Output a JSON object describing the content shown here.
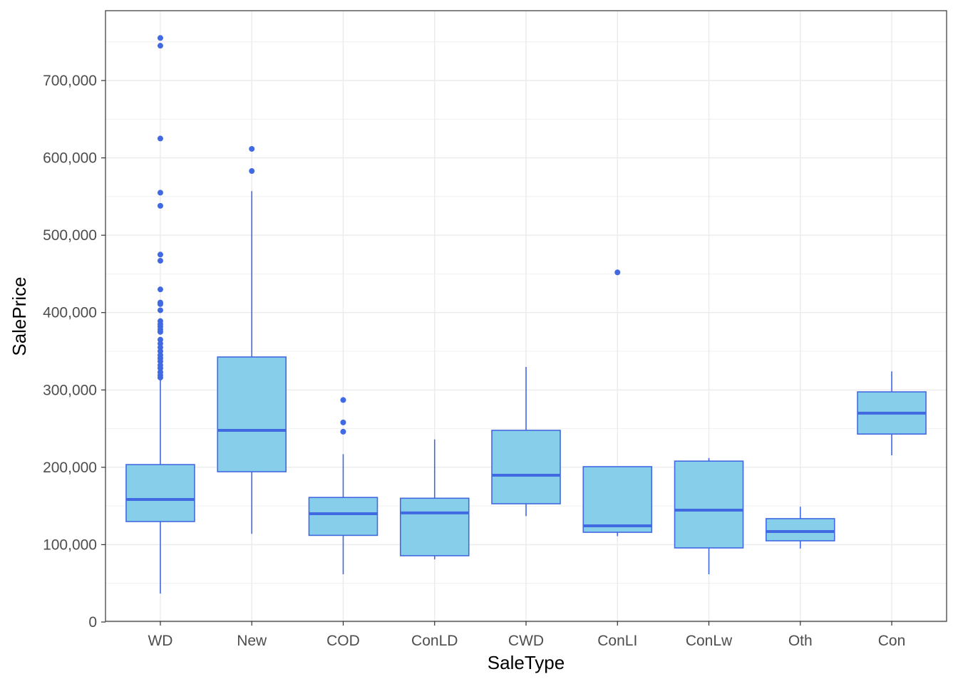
{
  "chart_data": {
    "type": "boxplot",
    "xlabel": "SaleType",
    "ylabel": "SalePrice",
    "ylim": [
      0,
      790000
    ],
    "yticks": [
      0,
      100000,
      200000,
      300000,
      400000,
      500000,
      600000,
      700000
    ],
    "ytick_labels": [
      "0",
      "100,000",
      "200,000",
      "300,000",
      "400,000",
      "500,000",
      "600,000",
      "700,000"
    ],
    "colors": {
      "fill": "#87CEEB",
      "stroke": "#4169E1",
      "grid": "#EBEBEB"
    },
    "categories": [
      "WD",
      "New",
      "COD",
      "ConLD",
      "CWD",
      "ConLI",
      "ConLw",
      "Oth",
      "Con"
    ],
    "boxes": [
      {
        "low": 36800,
        "q1": 129900,
        "median": 158400,
        "q3": 203500,
        "high": 314000,
        "outliers": [
          755000,
          745000,
          625000,
          555000,
          538000,
          475000,
          467000,
          430000,
          413000,
          411000,
          403000,
          389000,
          385000,
          382000,
          378000,
          375000,
          365000,
          360000,
          355000,
          350000,
          345000,
          341000,
          337000,
          332000,
          328000,
          323000,
          319000,
          316000
        ]
      },
      {
        "low": 114000,
        "q1": 194300,
        "median": 247800,
        "q3": 342600,
        "high": 557000,
        "outliers": [
          611600,
          583000
        ]
      },
      {
        "low": 61700,
        "q1": 112000,
        "median": 140000,
        "q3": 161000,
        "high": 217000,
        "outliers": [
          287000,
          258000,
          246000
        ]
      },
      {
        "low": 81000,
        "q1": 85700,
        "median": 141000,
        "q3": 160000,
        "high": 236000,
        "outliers": []
      },
      {
        "low": 137000,
        "q1": 152900,
        "median": 189700,
        "q3": 247800,
        "high": 329700,
        "outliers": []
      },
      {
        "low": 111000,
        "q1": 116000,
        "median": 124300,
        "q3": 200800,
        "high": 200800,
        "outliers": [
          452000
        ]
      },
      {
        "low": 61700,
        "q1": 95800,
        "median": 144600,
        "q3": 208000,
        "high": 212000,
        "outliers": []
      },
      {
        "low": 95000,
        "q1": 105000,
        "median": 117000,
        "q3": 133600,
        "high": 149000,
        "outliers": []
      },
      {
        "low": 215500,
        "q1": 243000,
        "median": 270000,
        "q3": 297500,
        "high": 324000,
        "outliers": []
      }
    ]
  }
}
